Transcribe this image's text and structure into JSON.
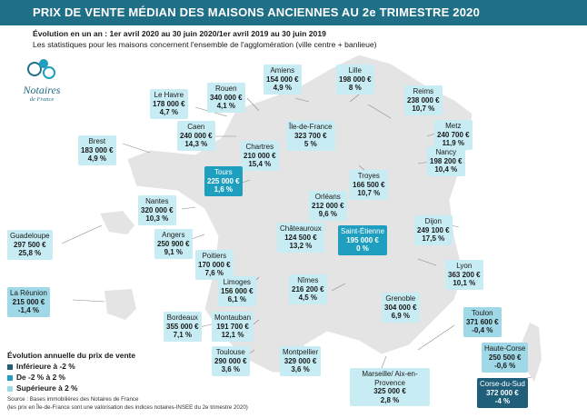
{
  "title": "PRIX DE VENTE MÉDIAN DES MAISONS ANCIENNES AU 2e TRIMESTRE 2020",
  "subtitle_label": "Évolution en un an : 1er avril 2020 au 30 juin 2020/1er avril 2019 au 30 juin 2019",
  "subtitle_note": "Les statistiques pour les maisons concernent l'ensemble de l'agglomération (ville centre + banlieue)",
  "logo_word": "Notaires",
  "logo_sub": "de France",
  "colors": {
    "low": "#1f5f7a",
    "mid": "#9fd8e6",
    "high": "#c8ecf3",
    "accent": "#1f9fbf",
    "title_bg": "#1f6f86"
  },
  "cities": [
    {
      "name": "Amiens",
      "price": "154 000 €",
      "change": "4,9 %",
      "cls": "high"
    },
    {
      "name": "Lille",
      "price": "198 000 €",
      "change": "8 %",
      "cls": "high"
    },
    {
      "name": "Le Havre",
      "price": "178 000 €",
      "change": "4,7 %",
      "cls": "high"
    },
    {
      "name": "Rouen",
      "price": "340 000 €",
      "change": "4,1 %",
      "cls": "high"
    },
    {
      "name": "Reims",
      "price": "238 000 €",
      "change": "10,7 %",
      "cls": "high"
    },
    {
      "name": "Caen",
      "price": "240 000 €",
      "change": "14,3 %",
      "cls": "high"
    },
    {
      "name": "Île-de-France",
      "price": "323 700 €",
      "change": "5 %",
      "cls": "high"
    },
    {
      "name": "Metz",
      "price": "240 700 €",
      "change": "11,9 %",
      "cls": "high"
    },
    {
      "name": "Brest",
      "price": "183 000 €",
      "change": "4,9 %",
      "cls": "high"
    },
    {
      "name": "Chartres",
      "price": "210 000 €",
      "change": "15,4 %",
      "cls": "high"
    },
    {
      "name": "Nancy",
      "price": "198 200 €",
      "change": "10,4 %",
      "cls": "high"
    },
    {
      "name": "Tours",
      "price": "225 000 €",
      "change": "1,6 %",
      "cls": "accent"
    },
    {
      "name": "Troyes",
      "price": "166 500 €",
      "change": "10,7 %",
      "cls": "high"
    },
    {
      "name": "Orléans",
      "price": "212 000 €",
      "change": "9,6 %",
      "cls": "high"
    },
    {
      "name": "Nantes",
      "price": "320 000 €",
      "change": "10,3 %",
      "cls": "high"
    },
    {
      "name": "Dijon",
      "price": "249 100 €",
      "change": "17,5 %",
      "cls": "high"
    },
    {
      "name": "Saint-Étienne",
      "price": "195 000 €",
      "change": "0 %",
      "cls": "accent"
    },
    {
      "name": "Angers",
      "price": "250 900 €",
      "change": "9,1 %",
      "cls": "high"
    },
    {
      "name": "Châteauroux",
      "price": "124 500 €",
      "change": "13,2 %",
      "cls": "high"
    },
    {
      "name": "Poitiers",
      "price": "170 000 €",
      "change": "7,6 %",
      "cls": "high"
    },
    {
      "name": "Lyon",
      "price": "363 200 €",
      "change": "10,1 %",
      "cls": "high"
    },
    {
      "name": "Limoges",
      "price": "156 000 €",
      "change": "6,1 %",
      "cls": "high"
    },
    {
      "name": "Nîmes",
      "price": "216 200 €",
      "change": "4,5 %",
      "cls": "high"
    },
    {
      "name": "Grenoble",
      "price": "304 000 €",
      "change": "6,9 %",
      "cls": "high"
    },
    {
      "name": "Bordeaux",
      "price": "355 000 €",
      "change": "7,1 %",
      "cls": "high"
    },
    {
      "name": "Montauban",
      "price": "191 700 €",
      "change": "12,1 %",
      "cls": "high"
    },
    {
      "name": "Toulon",
      "price": "371 600 €",
      "change": "-0,4 %",
      "cls": "mid"
    },
    {
      "name": "Toulouse",
      "price": "290 000 €",
      "change": "3,6 %",
      "cls": "high"
    },
    {
      "name": "Montpellier",
      "price": "329 000 €",
      "change": "3,6 %",
      "cls": "high"
    },
    {
      "name": "Marseille/ Aix-en-Provence",
      "price": "325 000 €",
      "change": "2,8 %",
      "cls": "high"
    },
    {
      "name": "Haute-Corse",
      "price": "250 500 €",
      "change": "-0,6 %",
      "cls": "mid"
    },
    {
      "name": "Corse-du-Sud",
      "price": "372 000 €",
      "change": "-4 %",
      "cls": "low"
    },
    {
      "name": "Guadeloupe",
      "price": "297 500 €",
      "change": "25,8 %",
      "cls": "high"
    },
    {
      "name": "La Réunion",
      "price": "215 000 €",
      "change": "-1,4 %",
      "cls": "mid"
    }
  ],
  "legend": {
    "title": "Évolution annuelle du prix de vente",
    "items": [
      {
        "label": "Inférieure à -2 %",
        "color": "#1f5f7a"
      },
      {
        "label": "De -2 % à 2 %",
        "color": "#1f9fbf"
      },
      {
        "label": "Supérieure à 2 %",
        "color": "#9fd8e6"
      }
    ]
  },
  "source_line1": "Source : Bases immobilières des Notaires de France",
  "source_line2": "(les prix en Île-de-France sont une valorisation des indices notaires-INSEE du 2e trimestre 2020)"
}
